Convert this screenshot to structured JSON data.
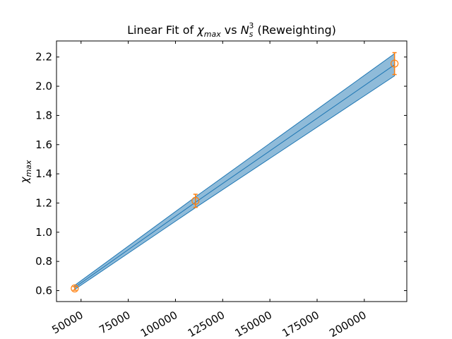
{
  "chart_data": {
    "type": "line",
    "title": {
      "prefix": "Linear Fit of ",
      "chi": "χ",
      "chi_sub": "max",
      "middle": " vs ",
      "n": "N",
      "n_sub": "s",
      "n_sup": "3",
      "suffix": " (Reweighting)"
    },
    "ylabel": {
      "chi": "χ",
      "sub": "max"
    },
    "xlabel": "",
    "xlim": [
      37000,
      222500
    ],
    "ylim": [
      0.525,
      2.31
    ],
    "xticks": [
      50000,
      75000,
      100000,
      125000,
      150000,
      175000,
      200000
    ],
    "yticks": [
      0.6,
      0.8,
      1.0,
      1.2,
      1.4,
      1.6,
      1.8,
      2.0,
      2.2
    ],
    "grid": false,
    "legend": "none",
    "series": [
      {
        "kind": "fit_line_with_band",
        "color": "#1f77b4",
        "band_color": "#1f77b4",
        "x": [
          46656,
          110592,
          216000
        ],
        "y": [
          0.622,
          1.205,
          2.147
        ],
        "band_lower": [
          0.608,
          1.168,
          2.071
        ],
        "band_upper": [
          0.636,
          1.242,
          2.223
        ]
      },
      {
        "kind": "points_with_errorbars",
        "color": "#ff7f0e",
        "marker": "open-circle",
        "x": [
          46656,
          110592,
          216000
        ],
        "y": [
          0.615,
          1.215,
          2.155
        ],
        "yerr": [
          0.012,
          0.045,
          0.075
        ]
      }
    ]
  }
}
